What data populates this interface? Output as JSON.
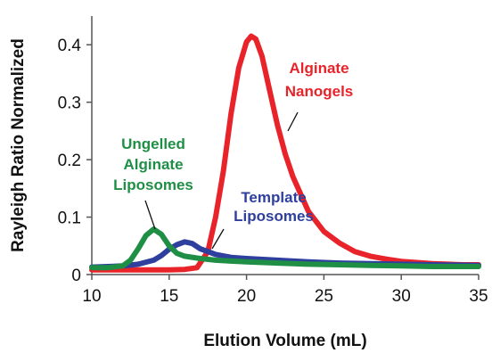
{
  "chart_data": {
    "type": "line",
    "title": "",
    "xlabel": "Elution Volume (mL)",
    "ylabel": "Rayleigh Ratio Normalized",
    "xlim": [
      10,
      35
    ],
    "ylim": [
      0,
      0.45
    ],
    "xticks": [
      10,
      15,
      20,
      25,
      30,
      35
    ],
    "xtick_labels": [
      "10",
      "15",
      "20",
      "25",
      "30",
      "35"
    ],
    "yticks": [
      0,
      0.1,
      0.2,
      0.3,
      0.4
    ],
    "ytick_labels": [
      "0",
      "0.1",
      "0.2",
      "0.3",
      "0.4"
    ],
    "grid": false,
    "legend": "none",
    "series": [
      {
        "name": "Alginate Nanogels",
        "color": "#e8232a",
        "x": [
          10,
          12,
          14,
          15,
          16,
          16.8,
          17.5,
          18,
          18.5,
          19,
          19.5,
          20,
          20.3,
          20.6,
          21,
          21.5,
          22,
          22.5,
          23,
          24,
          25,
          26,
          27,
          28,
          29,
          30,
          31,
          32,
          33,
          34,
          35
        ],
        "y": [
          0.008,
          0.008,
          0.008,
          0.008,
          0.009,
          0.012,
          0.04,
          0.1,
          0.18,
          0.28,
          0.36,
          0.405,
          0.415,
          0.41,
          0.38,
          0.32,
          0.26,
          0.21,
          0.17,
          0.11,
          0.075,
          0.055,
          0.04,
          0.032,
          0.027,
          0.023,
          0.021,
          0.019,
          0.018,
          0.017,
          0.017
        ]
      },
      {
        "name": "Template Liposomes",
        "color": "#2e3f9e",
        "x": [
          10,
          11,
          12,
          13,
          14,
          14.5,
          15,
          15.5,
          16,
          16.5,
          17,
          18,
          19,
          20,
          22,
          24,
          26,
          28,
          30,
          32,
          35
        ],
        "y": [
          0.013,
          0.014,
          0.015,
          0.018,
          0.025,
          0.033,
          0.044,
          0.052,
          0.057,
          0.054,
          0.045,
          0.035,
          0.03,
          0.028,
          0.025,
          0.022,
          0.02,
          0.019,
          0.018,
          0.017,
          0.016
        ]
      },
      {
        "name": "Ungelled Alginate Liposomes",
        "color": "#1f8f45",
        "x": [
          10,
          11,
          12,
          12.5,
          13,
          13.5,
          14,
          14.5,
          15,
          15.5,
          16,
          17,
          18,
          20,
          22,
          24,
          26,
          28,
          30,
          32,
          35
        ],
        "y": [
          0.012,
          0.012,
          0.015,
          0.025,
          0.045,
          0.068,
          0.079,
          0.07,
          0.05,
          0.037,
          0.032,
          0.028,
          0.025,
          0.022,
          0.02,
          0.018,
          0.017,
          0.016,
          0.015,
          0.014,
          0.014
        ]
      }
    ],
    "annotations": [
      {
        "label": "ann-nanogels",
        "lines": [
          "Alginate",
          "Nanogels"
        ],
        "color": "#e8232a",
        "series": 0,
        "point": [
          21.8,
          0.265
        ]
      },
      {
        "label": "ann-ungelled",
        "lines": [
          "Ungelled",
          "Alginate",
          "Liposomes"
        ],
        "color": "#1f8f45",
        "series": 2,
        "point": [
          14.2,
          0.075
        ]
      },
      {
        "label": "ann-template",
        "lines": [
          "Template",
          "Liposomes"
        ],
        "color": "#2e3f9e",
        "series": 1,
        "point": [
          17.3,
          0.03
        ]
      }
    ]
  }
}
